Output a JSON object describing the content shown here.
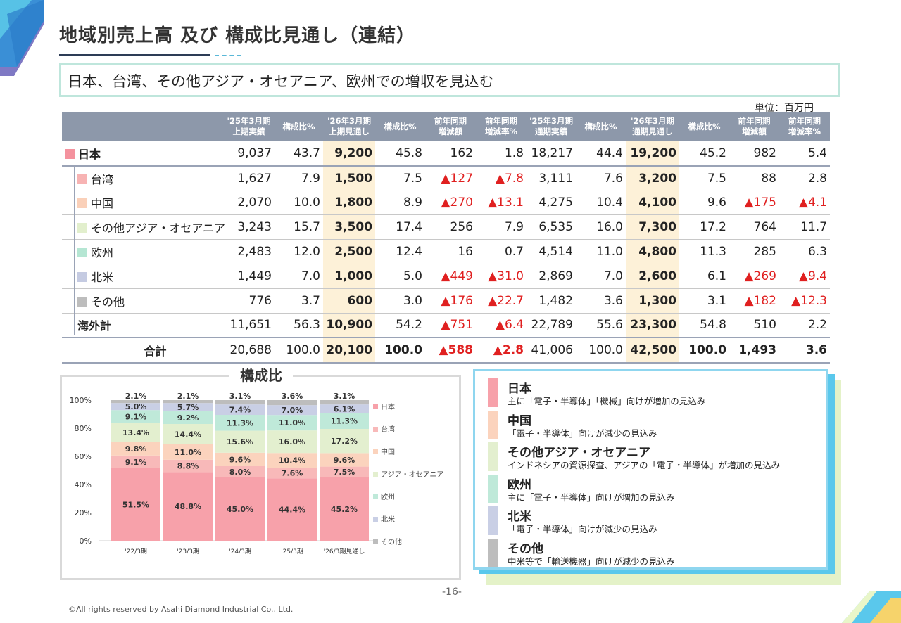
{
  "title": "地域別売上高 及び 構成比見通し（連結）",
  "subtitle": "日本、台湾、その他アジア・オセアニア、欧州での増収を見込む",
  "unit": "単位：百万円",
  "table": {
    "headers": [
      "",
      "'25年3月期\n上期実績",
      "構成比%",
      "'26年3月期\n上期見通し",
      "構成比%",
      "前年同期\n増減額",
      "前年同期\n増減率%",
      "'25年3月期\n通期実績",
      "構成比%",
      "'26年3月期\n通期見通し",
      "構成比%",
      "前年同期\n増減額",
      "前年同期\n増減率%"
    ],
    "rows": [
      {
        "name": "日本",
        "color": "#f4929e",
        "values": [
          "9,037",
          "43.7",
          "9,200",
          "45.8",
          "162",
          "1.8",
          "18,217",
          "44.4",
          "19,200",
          "45.2",
          "982",
          "5.4"
        ]
      },
      {
        "name": "台湾",
        "color": "#f7b3b3",
        "values": [
          "1,627",
          "7.9",
          "1,500",
          "7.5",
          "▲127",
          "▲7.8",
          "3,111",
          "7.6",
          "3,200",
          "7.5",
          "88",
          "2.8"
        ]
      },
      {
        "name": "中国",
        "color": "#fad0b9",
        "values": [
          "2,070",
          "10.0",
          "1,800",
          "8.9",
          "▲270",
          "▲13.1",
          "4,275",
          "10.4",
          "4,100",
          "9.6",
          "▲175",
          "▲4.1"
        ]
      },
      {
        "name": "その他アジア・オセアニア",
        "color": "#e2efcd",
        "values": [
          "3,243",
          "15.7",
          "3,500",
          "17.4",
          "256",
          "7.9",
          "6,535",
          "16.0",
          "7,300",
          "17.2",
          "764",
          "11.7"
        ]
      },
      {
        "name": "欧州",
        "color": "#b5e6d3",
        "values": [
          "2,483",
          "12.0",
          "2,500",
          "12.4",
          "16",
          "0.7",
          "4,514",
          "11.0",
          "4,800",
          "11.3",
          "285",
          "6.3"
        ]
      },
      {
        "name": "北米",
        "color": "#c5cbe2",
        "values": [
          "1,449",
          "7.0",
          "1,000",
          "5.0",
          "▲449",
          "▲31.0",
          "2,869",
          "7.0",
          "2,600",
          "6.1",
          "▲269",
          "▲9.4"
        ]
      },
      {
        "name": "その他",
        "color": "#bdbdbd",
        "values": [
          "776",
          "3.7",
          "600",
          "3.0",
          "▲176",
          "▲22.7",
          "1,482",
          "3.6",
          "1,300",
          "3.1",
          "▲182",
          "▲12.3"
        ]
      },
      {
        "name": "海外計",
        "color": "",
        "values": [
          "11,651",
          "56.3",
          "10,900",
          "54.2",
          "▲751",
          "▲6.4",
          "22,789",
          "55.6",
          "23,300",
          "54.8",
          "510",
          "2.2"
        ]
      },
      {
        "name": "合計",
        "color": "",
        "values": [
          "20,688",
          "100.0",
          "20,100",
          "100.0",
          "▲588",
          "▲2.8",
          "41,006",
          "100.0",
          "42,500",
          "100.0",
          "1,493",
          "3.6"
        ]
      }
    ]
  },
  "chart_data": {
    "type": "bar",
    "title": "構成比",
    "stacked": true,
    "categories": [
      "'22/3期",
      "'23/3期",
      "'24/3期",
      "'25/3期",
      "'26/3期見通し"
    ],
    "y_ticks": [
      "0%",
      "20%",
      "40%",
      "60%",
      "80%",
      "100%"
    ],
    "ylim": [
      0,
      100
    ],
    "series": [
      {
        "name": "日本",
        "color": "#f7a1aa",
        "values": [
          51.5,
          48.8,
          45.0,
          44.4,
          45.2
        ]
      },
      {
        "name": "台湾",
        "color": "#f8b9b9",
        "values": [
          9.1,
          8.8,
          8.0,
          7.6,
          7.5
        ]
      },
      {
        "name": "中国",
        "color": "#fbd3bd",
        "values": [
          9.8,
          11.0,
          9.6,
          10.4,
          9.6
        ]
      },
      {
        "name": "アジア・オセアニア",
        "color": "#e3efcf",
        "values": [
          13.4,
          14.4,
          15.6,
          16.0,
          17.2
        ]
      },
      {
        "name": "欧州",
        "color": "#bfe9d9",
        "values": [
          9.1,
          9.2,
          11.3,
          11.0,
          11.3
        ]
      },
      {
        "name": "北米",
        "color": "#c9cfe5",
        "values": [
          5.0,
          5.7,
          7.4,
          7.0,
          6.1
        ]
      },
      {
        "name": "その他",
        "color": "#bdbdbd",
        "values": [
          2.1,
          2.1,
          3.1,
          3.6,
          3.1
        ]
      }
    ],
    "legend_position": "right"
  },
  "regions": [
    {
      "name": "日本",
      "desc": "主に「電子・半導体」「機械」向けが増加の見込み",
      "color": "#f7a1aa"
    },
    {
      "name": "中国",
      "desc": "「電子・半導体」向けが減少の見込み",
      "color": "#fbd3bd"
    },
    {
      "name": "その他アジア・オセアニア",
      "desc": "インドネシアの資源探査、アジアの「電子・半導体」が増加の見込み",
      "color": "#e3efcf"
    },
    {
      "name": "欧州",
      "desc": "主に「電子・半導体」向けが増加の見込み",
      "color": "#bfe9d9"
    },
    {
      "name": "北米",
      "desc": "「電子・半導体」向けが減少の見込み",
      "color": "#c9cfe5"
    },
    {
      "name": "その他",
      "desc": "中米等で「輸送機器」向けが減少の見込み",
      "color": "#bdbdbd"
    }
  ],
  "page_number": "-16-",
  "copyright": "©All rights reserved by Asahi Diamond Industrial Co., Ltd."
}
